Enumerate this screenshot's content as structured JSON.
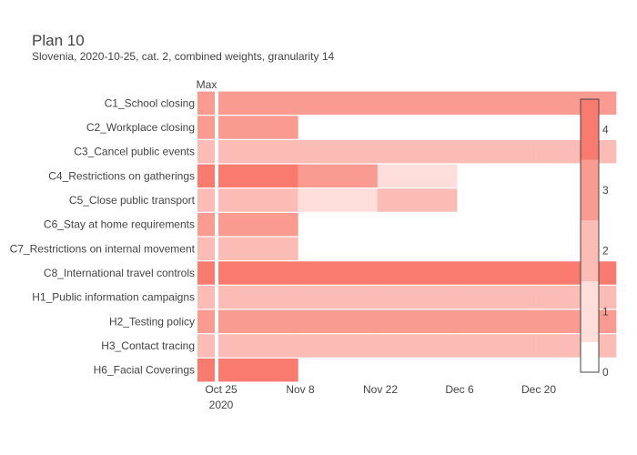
{
  "chart_data": {
    "type": "heatmap",
    "title": "Plan 10",
    "subtitle": "Slovenia, 2020-10-25, cat. 2, combined weights, granularity 14",
    "max_column_label": "Max",
    "x_tick_labels": [
      "Oct 25",
      "Nov 8",
      "Nov 22",
      "Dec 6",
      "Dec 20"
    ],
    "x_year_label": "2020",
    "rows": [
      "C1_School closing",
      "C2_Workplace closing",
      "C3_Cancel public events",
      "C4_Restrictions on gatherings",
      "C5_Close public transport",
      "C6_Stay at home requirements",
      "C7_Restrictions on internal movement",
      "C8_International travel controls",
      "H1_Public information campaigns",
      "H2_Testing policy",
      "H3_Contact tracing",
      "H6_Facial Coverings"
    ],
    "periods": [
      "Oct 25",
      "Nov 8",
      "Nov 22",
      "Dec 6",
      "Dec 20"
    ],
    "max_values": [
      3,
      3,
      2,
      4,
      2,
      3,
      2,
      4,
      2,
      3,
      2,
      4
    ],
    "values": [
      [
        3,
        3,
        3,
        3,
        3
      ],
      [
        3,
        null,
        null,
        null,
        null
      ],
      [
        2,
        2,
        2,
        2,
        2
      ],
      [
        4,
        3,
        1,
        null,
        null
      ],
      [
        2,
        1,
        2,
        null,
        null
      ],
      [
        3,
        null,
        null,
        null,
        null
      ],
      [
        2,
        null,
        null,
        null,
        null
      ],
      [
        4,
        4,
        4,
        4,
        4
      ],
      [
        2,
        2,
        2,
        2,
        2
      ],
      [
        3,
        3,
        3,
        3,
        3
      ],
      [
        2,
        2,
        2,
        2,
        2
      ],
      [
        4,
        null,
        null,
        null,
        null
      ]
    ],
    "colorbar": {
      "tick_labels": [
        "0",
        "1",
        "2",
        "3",
        "4"
      ],
      "range": [
        0,
        4.5
      ]
    },
    "colors": {
      "0": "#ffffff",
      "1": "#fddedb",
      "2": "#fcbcb6",
      "3": "#fa9b92",
      "4": "#f97a6f"
    }
  }
}
